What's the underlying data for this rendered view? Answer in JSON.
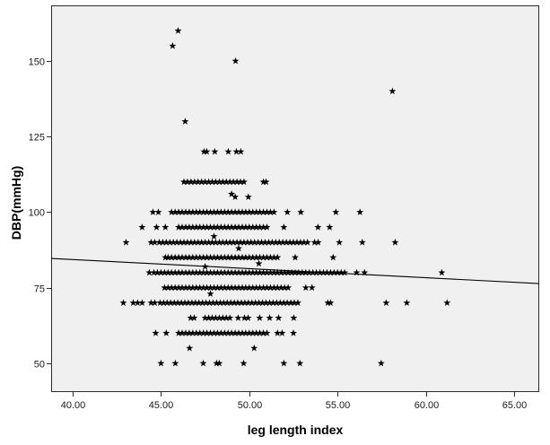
{
  "chart_data": {
    "type": "scatter",
    "xlabel": "leg length index",
    "ylabel": "DBP(mmHg)",
    "xlim": [
      38.78,
      66.42
    ],
    "ylim": [
      40.5,
      168.4
    ],
    "xticks": [
      40,
      45,
      50,
      55,
      60,
      65
    ],
    "xtick_labels": [
      "40.00",
      "45.00",
      "50.00",
      "55.00",
      "60.00",
      "65.00"
    ],
    "yticks": [
      50,
      75,
      100,
      125,
      150
    ],
    "ytick_labels": [
      "50",
      "75",
      "100",
      "125",
      "150"
    ],
    "grid": false,
    "marker": "star",
    "colors": {
      "plot_background": "#F0F0F0",
      "marker": "#000000",
      "fit_line": "#000000",
      "frame": "#2b2b2b"
    },
    "points": [
      {
        "y": 160,
        "x": [
          45.97
        ]
      },
      {
        "y": 155,
        "x": [
          45.66
        ]
      },
      {
        "y": 150,
        "x": [
          49.22
        ]
      },
      {
        "y": 140,
        "x": [
          58.11
        ]
      },
      {
        "y": 130,
        "x": [
          46.37
        ]
      },
      {
        "y": 120,
        "x": [
          47.44,
          47.59,
          48.05,
          48.81,
          49.27,
          49.52
        ]
      },
      {
        "y": 110,
        "x": [
          46.3,
          46.5,
          46.7,
          46.9,
          47.1,
          47.3,
          47.5,
          47.7,
          47.9,
          48.1,
          48.3,
          48.5,
          48.7,
          48.9,
          49.1,
          49.3,
          49.5,
          49.7,
          50.8,
          50.95
        ]
      },
      {
        "y": 106,
        "x": [
          49.0
        ]
      },
      {
        "y": 105,
        "x": [
          49.2,
          49.95
        ]
      },
      {
        "y": 100,
        "x": [
          44.54,
          44.85,
          45.6,
          45.8,
          46.0,
          46.2,
          46.4,
          46.6,
          46.8,
          47.0,
          47.2,
          47.4,
          47.6,
          47.8,
          48.0,
          48.2,
          48.4,
          48.6,
          48.8,
          49.0,
          49.2,
          49.4,
          49.6,
          49.8,
          50.0,
          50.2,
          50.4,
          50.6,
          50.8,
          51.0,
          51.2,
          51.4,
          52.16,
          52.92,
          54.9,
          56.27
        ]
      },
      {
        "y": 95,
        "x": [
          43.93,
          44.75,
          45.25,
          46.0,
          46.2,
          46.4,
          46.6,
          46.8,
          47.0,
          47.2,
          47.4,
          47.6,
          47.8,
          48.0,
          48.2,
          48.4,
          48.6,
          48.8,
          49.0,
          49.2,
          49.4,
          49.6,
          49.8,
          50.0,
          50.2,
          50.4,
          50.6,
          50.8,
          51.0,
          51.96,
          53.89,
          54.55
        ]
      },
      {
        "y": 92,
        "x": [
          48.0
        ]
      },
      {
        "y": 90,
        "x": [
          43.02,
          44.44,
          44.65,
          44.9,
          45.1,
          45.3,
          45.5,
          45.7,
          45.9,
          46.1,
          46.3,
          46.5,
          46.7,
          46.9,
          47.1,
          47.3,
          47.5,
          47.7,
          47.9,
          48.1,
          48.3,
          48.5,
          48.7,
          48.9,
          49.1,
          49.3,
          49.5,
          49.7,
          49.9,
          50.1,
          50.3,
          50.5,
          50.7,
          50.9,
          51.1,
          51.3,
          51.5,
          51.7,
          51.9,
          52.1,
          52.3,
          52.5,
          52.7,
          52.9,
          53.1,
          53.3,
          53.7,
          53.9,
          55.1,
          56.4,
          58.26
        ]
      },
      {
        "y": 88,
        "x": [
          49.4
        ]
      },
      {
        "y": 85,
        "x": [
          45.25,
          45.4,
          45.6,
          45.8,
          46.0,
          46.2,
          46.4,
          46.6,
          46.8,
          47.0,
          47.2,
          47.4,
          47.6,
          47.8,
          48.0,
          48.2,
          48.4,
          48.6,
          48.8,
          49.0,
          49.2,
          49.4,
          49.6,
          49.8,
          50.0,
          50.2,
          50.4,
          50.6,
          50.8,
          51.0,
          51.2,
          51.4,
          51.6,
          52.6,
          54.75
        ]
      },
      {
        "y": 83,
        "x": [
          50.54
        ]
      },
      {
        "y": 82,
        "x": [
          47.5
        ]
      },
      {
        "y": 80,
        "x": [
          44.34,
          44.6,
          44.8,
          45.0,
          45.2,
          45.4,
          45.6,
          45.8,
          46.0,
          46.2,
          46.4,
          46.6,
          46.8,
          47.0,
          47.2,
          47.4,
          47.6,
          47.8,
          48.0,
          48.2,
          48.4,
          48.6,
          48.8,
          49.0,
          49.2,
          49.4,
          49.6,
          49.8,
          50.0,
          50.2,
          50.4,
          50.6,
          50.8,
          51.0,
          51.2,
          51.4,
          51.6,
          51.8,
          52.0,
          52.2,
          52.4,
          52.6,
          52.8,
          53.0,
          53.2,
          53.4,
          53.6,
          53.8,
          54.0,
          54.2,
          54.4,
          54.6,
          54.8,
          55.0,
          55.2,
          55.4,
          56.08,
          56.53,
          60.9
        ]
      },
      {
        "y": 75,
        "x": [
          45.2,
          45.4,
          45.6,
          45.8,
          46.0,
          46.2,
          46.4,
          46.6,
          46.8,
          47.0,
          47.2,
          47.4,
          47.6,
          47.8,
          48.0,
          48.2,
          48.4,
          48.6,
          48.8,
          49.0,
          49.2,
          49.4,
          49.6,
          49.8,
          50.0,
          50.2,
          50.4,
          50.6,
          50.8,
          51.0,
          51.2,
          51.4,
          51.6,
          51.8,
          52.0,
          52.2,
          53.2,
          53.55
        ]
      },
      {
        "y": 73,
        "x": [
          47.8
        ]
      },
      {
        "y": 70,
        "x": [
          42.87,
          43.43,
          43.68,
          43.93,
          44.44,
          44.65,
          44.95,
          45.15,
          45.35,
          45.55,
          45.75,
          45.95,
          46.15,
          46.35,
          46.55,
          46.75,
          46.95,
          47.15,
          47.35,
          47.55,
          47.75,
          47.95,
          48.15,
          48.35,
          48.55,
          48.75,
          48.95,
          49.15,
          49.35,
          49.55,
          49.75,
          49.95,
          50.15,
          50.35,
          50.55,
          50.75,
          50.95,
          51.15,
          51.35,
          51.55,
          51.75,
          51.95,
          52.15,
          52.35,
          52.55,
          52.75,
          54.45,
          54.6,
          57.75,
          58.92,
          61.2
        ]
      },
      {
        "y": 65,
        "x": [
          46.68,
          46.88,
          47.5,
          47.7,
          47.9,
          48.1,
          48.3,
          48.5,
          48.7,
          48.9,
          49.37,
          49.73,
          49.93,
          50.59,
          51.15,
          51.66,
          52.52
        ]
      },
      {
        "y": 60,
        "x": [
          44.7,
          45.3,
          46.0,
          46.2,
          46.4,
          46.6,
          46.8,
          47.0,
          47.2,
          47.4,
          47.6,
          47.8,
          48.0,
          48.2,
          48.4,
          48.6,
          48.8,
          49.0,
          49.2,
          49.4,
          49.6,
          49.8,
          50.0,
          50.2,
          50.4,
          50.6,
          50.8,
          51.0,
          51.6,
          51.86,
          52.5
        ]
      },
      {
        "y": 55,
        "x": [
          46.62,
          50.28
        ]
      },
      {
        "y": 50,
        "x": [
          45.0,
          45.81,
          47.39,
          48.15,
          48.3,
          49.68,
          51.96,
          52.87,
          57.47
        ]
      }
    ],
    "fit_line": {
      "x": [
        38.78,
        66.42
      ],
      "y": [
        84.7,
        76.4
      ]
    }
  }
}
